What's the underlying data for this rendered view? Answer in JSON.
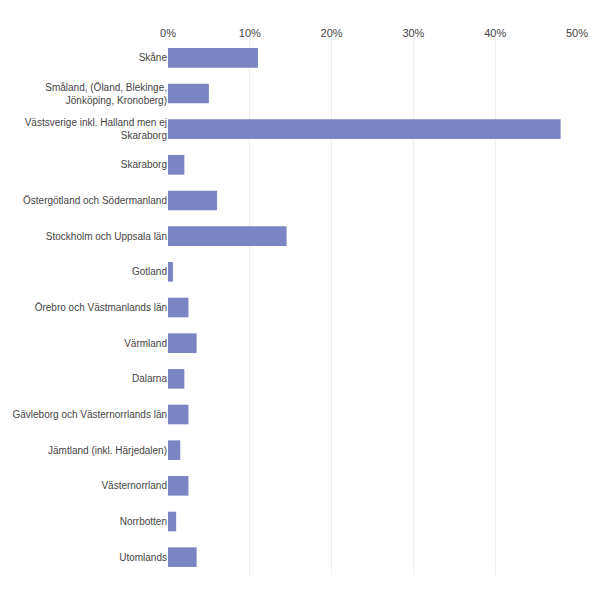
{
  "chart_data": {
    "type": "bar",
    "orientation": "horizontal",
    "categories": [
      "Utomlands",
      "Norrbotten",
      "Västernorrland",
      "Jämtland (inkl. Härjedalen)",
      "Gävleborg och Västernorrlands län",
      "Dalarna",
      "Värmland",
      "Örebro och Västmanlands län",
      "Gotland",
      "Stockholm och Uppsala län",
      "Östergötland och Södermanland",
      "Skaraborg",
      "Västsverige inkl. Halland men ej\nSkaraborg",
      "Småland, (Öland, Blekinge,\nJönköping, Kronoberg)",
      "Skåne"
    ],
    "values": [
      3.5,
      1.0,
      2.5,
      1.5,
      2.5,
      2.0,
      3.5,
      2.5,
      0.6,
      14.5,
      6.0,
      2.0,
      48.0,
      5.0,
      11.0
    ],
    "color": "#7b85c4",
    "xlim": [
      0,
      50
    ],
    "xticks": [
      {
        "value": 0,
        "label": "0%"
      },
      {
        "value": 10,
        "label": "10%"
      },
      {
        "value": 20,
        "label": "20%"
      },
      {
        "value": 30,
        "label": "30%"
      },
      {
        "value": 40,
        "label": "40%"
      },
      {
        "value": 50,
        "label": "50%"
      }
    ],
    "grid": true
  }
}
